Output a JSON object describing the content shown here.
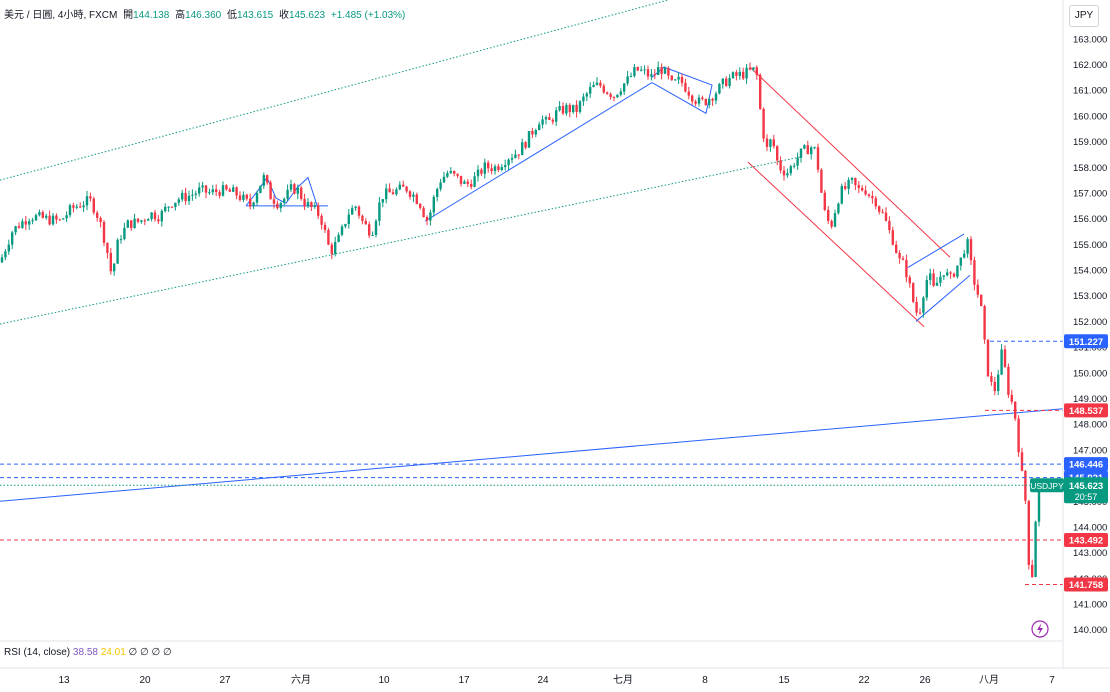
{
  "legend": {
    "symbol": "美元 / 日圓, 4小時, FXCM",
    "open_label": "開",
    "open": "144.138",
    "high_label": "高",
    "high": "146.360",
    "low_label": "低",
    "low": "143.615",
    "close_label": "收",
    "close": "145.623",
    "change": "+1.485 (+1.03%)"
  },
  "currency_button": "JPY",
  "rsi": {
    "label": "RSI (14, close)",
    "value1": "38.58",
    "value2": "24.01",
    "extras": [
      "∅",
      "∅",
      "∅",
      "∅"
    ]
  },
  "chart_data": {
    "type": "candlestick",
    "y_axis": {
      "side": "right",
      "ylim": [
        139.6,
        163.5
      ],
      "ticks": [
        "163.000",
        "162.000",
        "161.000",
        "160.000",
        "159.000",
        "158.000",
        "157.000",
        "156.000",
        "155.000",
        "154.000",
        "153.000",
        "152.000",
        "151.000",
        "150.000",
        "149.000",
        "148.000",
        "147.000",
        "146.000",
        "145.000",
        "144.000",
        "143.000",
        "142.000",
        "141.000",
        "140.000"
      ]
    },
    "x_axis": {
      "ticks": [
        "13",
        "20",
        "27",
        "六月",
        "10",
        "17",
        "24",
        "七月",
        "8",
        "15",
        "22",
        "26",
        "八月",
        "7"
      ]
    },
    "price_path": [
      [
        0,
        154.3
      ],
      [
        5,
        154.8
      ],
      [
        12,
        155.5
      ],
      [
        20,
        155.8
      ],
      [
        30,
        156.1
      ],
      [
        45,
        156.0
      ],
      [
        60,
        155.9
      ],
      [
        72,
        156.4
      ],
      [
        82,
        156.6
      ],
      [
        90,
        156.7
      ],
      [
        96,
        156.3
      ],
      [
        102,
        155.6
      ],
      [
        107,
        154.8
      ],
      [
        110,
        154.0
      ],
      [
        113,
        153.9
      ],
      [
        116,
        154.8
      ],
      [
        120,
        155.3
      ],
      [
        128,
        155.8
      ],
      [
        140,
        155.9
      ],
      [
        150,
        156.2
      ],
      [
        160,
        156.1
      ],
      [
        170,
        156.6
      ],
      [
        180,
        156.8
      ],
      [
        190,
        156.9
      ],
      [
        200,
        157.1
      ],
      [
        210,
        157.0
      ],
      [
        220,
        157.1
      ],
      [
        235,
        157.0
      ],
      [
        245,
        156.7
      ],
      [
        250,
        156.5
      ],
      [
        258,
        157.2
      ],
      [
        264,
        157.6
      ],
      [
        270,
        156.9
      ],
      [
        278,
        156.6
      ],
      [
        285,
        156.8
      ],
      [
        292,
        157.2
      ],
      [
        298,
        157.1
      ],
      [
        305,
        156.6
      ],
      [
        312,
        156.4
      ],
      [
        318,
        156.2
      ],
      [
        322,
        155.9
      ],
      [
        326,
        155.3
      ],
      [
        330,
        154.7
      ],
      [
        334,
        154.9
      ],
      [
        340,
        155.3
      ],
      [
        348,
        156.2
      ],
      [
        356,
        156.5
      ],
      [
        362,
        155.9
      ],
      [
        368,
        155.6
      ],
      [
        372,
        155.5
      ],
      [
        376,
        156.1
      ],
      [
        382,
        156.9
      ],
      [
        390,
        157.0
      ],
      [
        398,
        157.1
      ],
      [
        406,
        157.2
      ],
      [
        414,
        156.9
      ],
      [
        420,
        156.6
      ],
      [
        425,
        156.1
      ],
      [
        428,
        155.9
      ],
      [
        434,
        156.8
      ],
      [
        440,
        157.5
      ],
      [
        448,
        157.8
      ],
      [
        456,
        157.6
      ],
      [
        466,
        157.3
      ],
      [
        476,
        157.6
      ],
      [
        484,
        158.0
      ],
      [
        496,
        158.0
      ],
      [
        508,
        158.4
      ],
      [
        518,
        158.6
      ],
      [
        526,
        159.0
      ],
      [
        534,
        159.5
      ],
      [
        540,
        159.9
      ],
      [
        548,
        159.7
      ],
      [
        556,
        160.1
      ],
      [
        566,
        160.3
      ],
      [
        576,
        160.2
      ],
      [
        584,
        160.7
      ],
      [
        592,
        161.1
      ],
      [
        600,
        161.2
      ],
      [
        606,
        161.0
      ],
      [
        614,
        160.8
      ],
      [
        620,
        161.1
      ],
      [
        628,
        161.4
      ],
      [
        636,
        161.8
      ],
      [
        644,
        161.7
      ],
      [
        652,
        161.5
      ],
      [
        660,
        161.9
      ],
      [
        666,
        161.6
      ],
      [
        672,
        161.2
      ],
      [
        680,
        161.4
      ],
      [
        688,
        161.0
      ],
      [
        694,
        160.7
      ],
      [
        700,
        160.5
      ],
      [
        706,
        160.6
      ],
      [
        712,
        160.8
      ],
      [
        718,
        161.0
      ],
      [
        724,
        161.3
      ],
      [
        732,
        161.5
      ],
      [
        740,
        161.6
      ],
      [
        748,
        161.7
      ],
      [
        755,
        161.8
      ],
      [
        758,
        161.4
      ],
      [
        760,
        160.3
      ],
      [
        763,
        159.4
      ],
      [
        766,
        158.8
      ],
      [
        768,
        158.6
      ],
      [
        771,
        159.1
      ],
      [
        774,
        158.8
      ],
      [
        778,
        158.1
      ],
      [
        782,
        157.9
      ],
      [
        788,
        157.8
      ],
      [
        794,
        158.2
      ],
      [
        800,
        158.5
      ],
      [
        806,
        158.7
      ],
      [
        812,
        158.8
      ],
      [
        816,
        158.6
      ],
      [
        820,
        157.4
      ],
      [
        824,
        156.3
      ],
      [
        828,
        155.9
      ],
      [
        832,
        155.8
      ],
      [
        836,
        156.5
      ],
      [
        840,
        157.0
      ],
      [
        846,
        157.2
      ],
      [
        852,
        157.4
      ],
      [
        858,
        157.1
      ],
      [
        864,
        157.2
      ],
      [
        868,
        157.0
      ],
      [
        872,
        156.8
      ],
      [
        876,
        156.7
      ],
      [
        880,
        156.3
      ],
      [
        884,
        156.1
      ],
      [
        888,
        155.6
      ],
      [
        892,
        155.3
      ],
      [
        896,
        154.8
      ],
      [
        900,
        154.3
      ],
      [
        904,
        154.2
      ],
      [
        908,
        153.7
      ],
      [
        912,
        152.9
      ],
      [
        916,
        152.5
      ],
      [
        918,
        152.1
      ],
      [
        922,
        152.9
      ],
      [
        926,
        153.6
      ],
      [
        930,
        153.7
      ],
      [
        934,
        153.2
      ],
      [
        938,
        153.6
      ],
      [
        944,
        154.0
      ],
      [
        950,
        153.6
      ],
      [
        956,
        154.1
      ],
      [
        960,
        154.3
      ],
      [
        964,
        154.8
      ],
      [
        966,
        155.2
      ],
      [
        969,
        154.8
      ],
      [
        972,
        153.9
      ],
      [
        976,
        153.3
      ],
      [
        980,
        152.8
      ],
      [
        983,
        151.9
      ],
      [
        986,
        150.4
      ],
      [
        990,
        149.7
      ],
      [
        994,
        149.2
      ],
      [
        998,
        150.0
      ],
      [
        1002,
        150.8
      ],
      [
        1006,
        149.9
      ],
      [
        1010,
        148.9
      ],
      [
        1014,
        148.8
      ],
      [
        1017,
        147.5
      ],
      [
        1020,
        146.8
      ],
      [
        1023,
        145.6
      ],
      [
        1026,
        144.9
      ],
      [
        1028,
        143.3
      ],
      [
        1030,
        141.8
      ],
      [
        1033,
        142.3
      ],
      [
        1036,
        144.6
      ],
      [
        1039,
        145.3
      ],
      [
        1042,
        145.6
      ]
    ],
    "trend_lines": [
      {
        "color": "#089981",
        "style": "dotted",
        "points": [
          [
            0,
            157.5
          ],
          [
            762,
            165.5
          ]
        ]
      },
      {
        "color": "#089981",
        "style": "dotted",
        "points": [
          [
            0,
            151.9
          ],
          [
            800,
            158.4
          ]
        ]
      },
      {
        "color": "#2962ff",
        "style": "solid",
        "points": [
          [
            0,
            145.0
          ],
          [
            1063,
            148.6
          ]
        ]
      }
    ],
    "horizontal_lines": [
      {
        "price": 146.446,
        "color": "#2962ff",
        "label": "146.446"
      },
      {
        "price": 145.921,
        "color": "#2962ff",
        "label": "145.921"
      },
      {
        "price": 143.492,
        "color": "#f23645",
        "label": "143.492"
      },
      {
        "price": 151.227,
        "color": "#2962ff",
        "label": "151.227"
      },
      {
        "price": 148.537,
        "color": "#f23645",
        "label": "148.537"
      },
      {
        "price": 141.758,
        "color": "#f23645",
        "label": "141.758"
      }
    ],
    "current": {
      "symbol": "USDJPY",
      "price": "145.623",
      "countdown": "20:57",
      "color": "#089981"
    }
  }
}
